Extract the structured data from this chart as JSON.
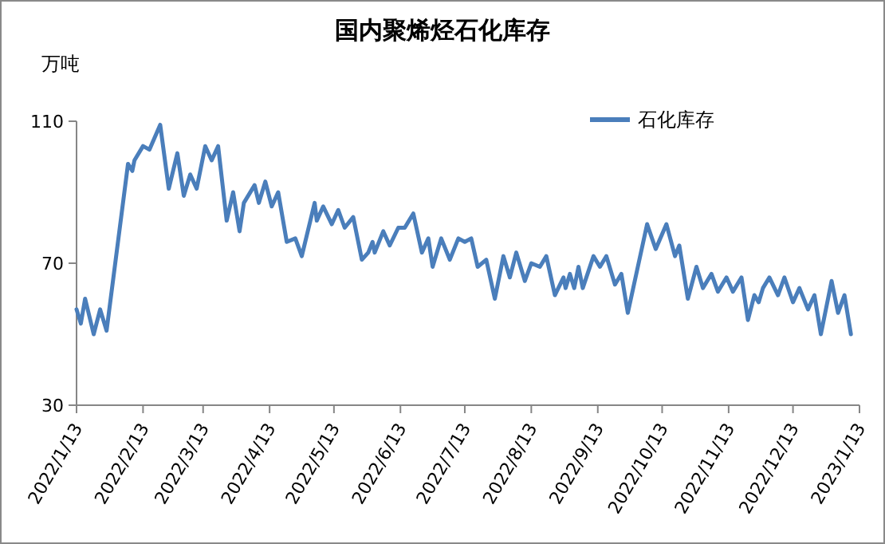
{
  "chart_data": {
    "type": "line",
    "title": "国内聚烯烃石化库存",
    "ylabel": "万吨",
    "x": [
      "2022-01-13",
      "2022-01-15",
      "2022-01-17",
      "2022-01-21",
      "2022-01-24",
      "2022-01-27",
      "2022-02-06",
      "2022-02-08",
      "2022-02-09",
      "2022-02-13",
      "2022-02-16",
      "2022-02-21",
      "2022-02-25",
      "2022-03-01",
      "2022-03-04",
      "2022-03-07",
      "2022-03-10",
      "2022-03-14",
      "2022-03-17",
      "2022-03-20",
      "2022-03-24",
      "2022-03-27",
      "2022-03-30",
      "2022-04-01",
      "2022-04-06",
      "2022-04-08",
      "2022-04-11",
      "2022-04-14",
      "2022-04-17",
      "2022-04-21",
      "2022-04-25",
      "2022-04-28",
      "2022-05-04",
      "2022-05-05",
      "2022-05-08",
      "2022-05-12",
      "2022-05-15",
      "2022-05-18",
      "2022-05-22",
      "2022-05-26",
      "2022-05-29",
      "2022-05-31",
      "2022-06-01",
      "2022-06-05",
      "2022-06-08",
      "2022-06-12",
      "2022-06-15",
      "2022-06-19",
      "2022-06-23",
      "2022-06-26",
      "2022-06-28",
      "2022-07-02",
      "2022-07-06",
      "2022-07-10",
      "2022-07-13",
      "2022-07-16",
      "2022-07-19",
      "2022-07-23",
      "2022-07-27",
      "2022-07-31",
      "2022-08-03",
      "2022-08-06",
      "2022-08-10",
      "2022-08-13",
      "2022-08-17",
      "2022-08-20",
      "2022-08-24",
      "2022-08-28",
      "2022-08-29",
      "2022-08-31",
      "2022-09-02",
      "2022-09-04",
      "2022-09-06",
      "2022-09-11",
      "2022-09-14",
      "2022-09-17",
      "2022-09-21",
      "2022-09-24",
      "2022-09-27",
      "2022-10-06",
      "2022-10-10",
      "2022-10-15",
      "2022-10-19",
      "2022-10-21",
      "2022-10-25",
      "2022-10-29",
      "2022-11-01",
      "2022-11-05",
      "2022-11-08",
      "2022-11-12",
      "2022-11-15",
      "2022-11-19",
      "2022-11-22",
      "2022-11-25",
      "2022-11-27",
      "2022-11-29",
      "2022-12-02",
      "2022-12-06",
      "2022-12-09",
      "2022-12-13",
      "2022-12-16",
      "2022-12-20",
      "2022-12-23",
      "2022-12-26",
      "2022-12-31",
      "2023-01-03",
      "2023-01-06",
      "2023-01-09"
    ],
    "series": [
      {
        "name": "石化库存",
        "color": "#4a7ebb",
        "values": [
          57,
          53,
          60,
          50,
          57,
          51,
          98,
          96,
          99,
          103,
          102,
          109,
          91,
          101,
          89,
          95,
          91,
          103,
          99,
          103,
          82,
          90,
          79,
          87,
          92,
          87,
          93,
          86,
          90,
          76,
          77,
          72,
          87,
          82,
          86,
          81,
          85,
          80,
          83,
          71,
          73,
          76,
          73,
          79,
          75,
          80,
          80,
          84,
          73,
          77,
          69,
          77,
          71,
          77,
          76,
          77,
          69,
          71,
          60,
          72,
          66,
          73,
          65,
          70,
          69,
          72,
          61,
          66,
          63,
          67,
          63,
          69,
          63,
          72,
          69,
          72,
          64,
          67,
          56,
          81,
          74,
          81,
          72,
          75,
          60,
          69,
          63,
          67,
          62,
          66,
          62,
          66,
          54,
          61,
          59,
          63,
          66,
          61,
          66,
          59,
          63,
          57,
          61,
          50,
          65,
          56,
          61,
          50
        ]
      }
    ],
    "xlim": [
      "2022-01-13",
      "2023-01-13"
    ],
    "xticks": [
      {
        "value": "2022-01-13",
        "label": "2022/1/13"
      },
      {
        "value": "2022-02-13",
        "label": "2022/2/13"
      },
      {
        "value": "2022-03-13",
        "label": "2022/3/13"
      },
      {
        "value": "2022-04-13",
        "label": "2022/4/13"
      },
      {
        "value": "2022-05-13",
        "label": "2022/5/13"
      },
      {
        "value": "2022-06-13",
        "label": "2022/6/13"
      },
      {
        "value": "2022-07-13",
        "label": "2022/7/13"
      },
      {
        "value": "2022-08-13",
        "label": "2022/8/13"
      },
      {
        "value": "2022-09-13",
        "label": "2022/9/13"
      },
      {
        "value": "2022-10-13",
        "label": "2022/10/13"
      },
      {
        "value": "2022-11-13",
        "label": "2022/11/13"
      },
      {
        "value": "2022-12-13",
        "label": "2022/12/13"
      },
      {
        "value": "2023-01-13",
        "label": "2023/1/13"
      }
    ],
    "ylim": [
      30,
      110
    ],
    "yticks": [
      30,
      70,
      110
    ],
    "legend": "top right",
    "grid": false,
    "marker": "none",
    "line_style": "solid"
  }
}
